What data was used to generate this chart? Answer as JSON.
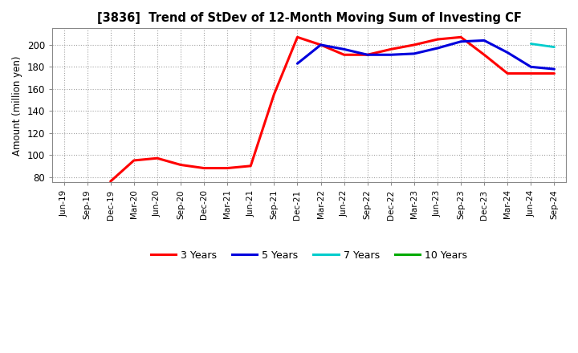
{
  "title": "[3836]  Trend of StDev of 12-Month Moving Sum of Investing CF",
  "ylabel": "Amount (million yen)",
  "background_color": "#ffffff",
  "plot_bg_color": "#ffffff",
  "grid_color": "#999999",
  "ylim": [
    75,
    215
  ],
  "yticks": [
    80,
    100,
    120,
    140,
    160,
    180,
    200
  ],
  "series": {
    "3 Years": {
      "color": "#ff0000",
      "linewidth": 2.2,
      "data": [
        [
          "Jun-19",
          null
        ],
        [
          "Sep-19",
          null
        ],
        [
          "Dec-19",
          76
        ],
        [
          "Mar-20",
          95
        ],
        [
          "Jun-20",
          97
        ],
        [
          "Sep-20",
          91
        ],
        [
          "Dec-20",
          88
        ],
        [
          "Mar-21",
          88
        ],
        [
          "Jun-21",
          90
        ],
        [
          "Sep-21",
          155
        ],
        [
          "Dec-21",
          207
        ],
        [
          "Mar-22",
          200
        ],
        [
          "Jun-22",
          191
        ],
        [
          "Sep-22",
          191
        ],
        [
          "Dec-22",
          196
        ],
        [
          "Mar-23",
          200
        ],
        [
          "Jun-23",
          205
        ],
        [
          "Sep-23",
          207
        ],
        [
          "Dec-23",
          191
        ],
        [
          "Mar-24",
          174
        ],
        [
          "Jun-24",
          174
        ],
        [
          "Sep-24",
          174
        ]
      ]
    },
    "5 Years": {
      "color": "#0000dd",
      "linewidth": 2.2,
      "data": [
        [
          "Jun-19",
          null
        ],
        [
          "Sep-19",
          null
        ],
        [
          "Dec-19",
          null
        ],
        [
          "Mar-20",
          null
        ],
        [
          "Jun-20",
          null
        ],
        [
          "Sep-20",
          null
        ],
        [
          "Dec-20",
          null
        ],
        [
          "Mar-21",
          null
        ],
        [
          "Jun-21",
          null
        ],
        [
          "Sep-21",
          null
        ],
        [
          "Dec-21",
          183
        ],
        [
          "Mar-22",
          200
        ],
        [
          "Jun-22",
          196
        ],
        [
          "Sep-22",
          191
        ],
        [
          "Dec-22",
          191
        ],
        [
          "Mar-23",
          192
        ],
        [
          "Jun-23",
          197
        ],
        [
          "Sep-23",
          203
        ],
        [
          "Dec-23",
          204
        ],
        [
          "Mar-24",
          193
        ],
        [
          "Jun-24",
          180
        ],
        [
          "Sep-24",
          178
        ]
      ]
    },
    "7 Years": {
      "color": "#00cccc",
      "linewidth": 2.0,
      "data": [
        [
          "Jun-19",
          null
        ],
        [
          "Sep-19",
          null
        ],
        [
          "Dec-19",
          null
        ],
        [
          "Mar-20",
          null
        ],
        [
          "Jun-20",
          null
        ],
        [
          "Sep-20",
          null
        ],
        [
          "Dec-20",
          null
        ],
        [
          "Mar-21",
          null
        ],
        [
          "Jun-21",
          null
        ],
        [
          "Sep-21",
          null
        ],
        [
          "Dec-21",
          null
        ],
        [
          "Mar-22",
          null
        ],
        [
          "Jun-22",
          null
        ],
        [
          "Sep-22",
          null
        ],
        [
          "Dec-22",
          null
        ],
        [
          "Mar-23",
          null
        ],
        [
          "Jun-23",
          null
        ],
        [
          "Sep-23",
          null
        ],
        [
          "Dec-23",
          null
        ],
        [
          "Mar-24",
          null
        ],
        [
          "Jun-24",
          201
        ],
        [
          "Sep-24",
          198
        ]
      ]
    },
    "10 Years": {
      "color": "#00aa00",
      "linewidth": 2.0,
      "data": [
        [
          "Jun-19",
          null
        ],
        [
          "Sep-19",
          null
        ],
        [
          "Dec-19",
          null
        ],
        [
          "Mar-20",
          null
        ],
        [
          "Jun-20",
          null
        ],
        [
          "Sep-20",
          null
        ],
        [
          "Dec-20",
          null
        ],
        [
          "Mar-21",
          null
        ],
        [
          "Jun-21",
          null
        ],
        [
          "Sep-21",
          null
        ],
        [
          "Dec-21",
          null
        ],
        [
          "Mar-22",
          null
        ],
        [
          "Jun-22",
          null
        ],
        [
          "Sep-22",
          null
        ],
        [
          "Dec-22",
          null
        ],
        [
          "Mar-23",
          null
        ],
        [
          "Jun-23",
          null
        ],
        [
          "Sep-23",
          null
        ],
        [
          "Dec-23",
          null
        ],
        [
          "Mar-24",
          null
        ],
        [
          "Jun-24",
          null
        ],
        [
          "Sep-24",
          null
        ]
      ]
    }
  },
  "legend_order": [
    "3 Years",
    "5 Years",
    "7 Years",
    "10 Years"
  ],
  "xtick_labels": [
    "Jun-19",
    "Sep-19",
    "Dec-19",
    "Mar-20",
    "Jun-20",
    "Sep-20",
    "Dec-20",
    "Mar-21",
    "Jun-21",
    "Sep-21",
    "Dec-21",
    "Mar-22",
    "Jun-22",
    "Sep-22",
    "Dec-22",
    "Mar-23",
    "Jun-23",
    "Sep-23",
    "Dec-23",
    "Mar-24",
    "Jun-24",
    "Sep-24"
  ],
  "figsize": [
    7.2,
    4.4
  ],
  "dpi": 100
}
